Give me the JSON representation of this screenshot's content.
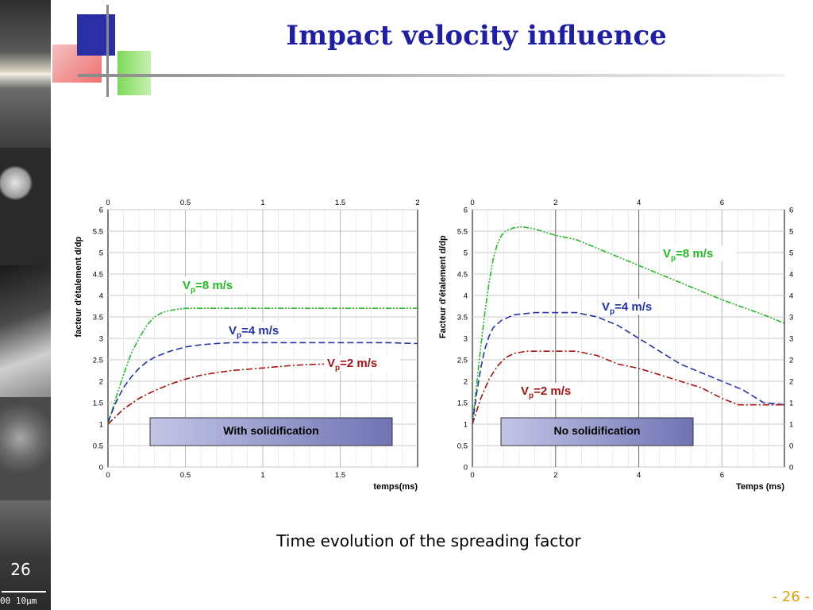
{
  "slide": {
    "title": "Impact velocity influence",
    "caption": "Time evolution of the spreading factor",
    "page_number": "- 26 -",
    "badge": "26",
    "scale_label": "00  10µm"
  },
  "chart_data": [
    {
      "type": "line",
      "ylabel": "facteur d'étalement d/dp",
      "xlabel": "temps(ms)",
      "xlim": [
        0,
        2
      ],
      "ylim": [
        0,
        6
      ],
      "x_ticks": [
        "0",
        "0.5",
        "1",
        "1.5"
      ],
      "x_ticks_top": [
        "0",
        "0.5",
        "1",
        "1.5",
        "2"
      ],
      "y_ticks": [
        "0",
        "0.5",
        "1",
        "1.5",
        "2",
        "2.5",
        "3",
        "3.5",
        "4",
        "4.5",
        "5",
        "5.5",
        "6"
      ],
      "grid": true,
      "box_label": "With solidification",
      "series": [
        {
          "name": "V_p=8 m/s",
          "label_main": "V",
          "label_sub": "p",
          "label_rest": "=8 m/s",
          "color": "#22bb22",
          "style": "dash-dot-dot",
          "x": [
            0,
            0.05,
            0.1,
            0.15,
            0.2,
            0.25,
            0.3,
            0.35,
            0.4,
            0.45,
            0.5,
            0.6,
            0.8,
            1.0,
            1.2,
            1.4,
            1.6,
            1.8,
            2.0
          ],
          "y": [
            1.0,
            1.6,
            2.15,
            2.65,
            3.0,
            3.3,
            3.5,
            3.6,
            3.65,
            3.68,
            3.7,
            3.7,
            3.7,
            3.7,
            3.7,
            3.7,
            3.7,
            3.7,
            3.7
          ]
        },
        {
          "name": "V_p=4 m/s",
          "label_main": "V",
          "label_sub": "p",
          "label_rest": "=4 m/s",
          "color": "#2233aa",
          "style": "dash",
          "x": [
            0,
            0.05,
            0.1,
            0.15,
            0.2,
            0.25,
            0.3,
            0.4,
            0.5,
            0.6,
            0.7,
            0.8,
            1.0,
            1.2,
            1.4,
            1.6,
            1.8,
            2.0
          ],
          "y": [
            1.05,
            1.5,
            1.85,
            2.1,
            2.3,
            2.45,
            2.56,
            2.7,
            2.8,
            2.85,
            2.88,
            2.9,
            2.9,
            2.9,
            2.9,
            2.9,
            2.9,
            2.88
          ]
        },
        {
          "name": "V_p=2 m/s",
          "label_main": "V",
          "label_sub": "p",
          "label_rest": "=2 m/s",
          "color": "#aa1111",
          "style": "dash-dot",
          "x": [
            0,
            0.1,
            0.2,
            0.3,
            0.4,
            0.5,
            0.6,
            0.7,
            0.8,
            0.9,
            1.0,
            1.1,
            1.2,
            1.3,
            1.4,
            1.5
          ],
          "y": [
            1.0,
            1.35,
            1.6,
            1.78,
            1.93,
            2.05,
            2.14,
            2.2,
            2.25,
            2.28,
            2.31,
            2.34,
            2.37,
            2.39,
            2.4,
            2.4
          ]
        }
      ]
    },
    {
      "type": "line",
      "ylabel": "Facteur d'étalement d/dp",
      "xlabel": "Temps (ms)",
      "xlim": [
        0,
        7.5
      ],
      "ylim": [
        0,
        6
      ],
      "x_ticks": [
        "0",
        "2",
        "4",
        "6"
      ],
      "x_ticks_top": [
        "0",
        "2",
        "4",
        "6"
      ],
      "y_ticks": [
        "0",
        "0.5",
        "1",
        "1.5",
        "2",
        "2.5",
        "3",
        "3.5",
        "4",
        "4.5",
        "5",
        "5.5",
        "6"
      ],
      "grid": true,
      "box_label": "No solidification",
      "series": [
        {
          "name": "V_p=8 m/s",
          "label_main": "V",
          "label_sub": "p",
          "label_rest": "=8 m/s",
          "color": "#22bb22",
          "style": "dash-dot-dot",
          "x": [
            0,
            0.1,
            0.2,
            0.3,
            0.4,
            0.5,
            0.6,
            0.7,
            0.8,
            1.0,
            1.2,
            1.5,
            2.0,
            2.5,
            3.0,
            4.0,
            5.0,
            6.0,
            7.0,
            7.5
          ],
          "y": [
            1.0,
            1.9,
            2.8,
            3.6,
            4.3,
            4.85,
            5.2,
            5.4,
            5.5,
            5.58,
            5.6,
            5.55,
            5.4,
            5.3,
            5.1,
            4.7,
            4.3,
            3.9,
            3.55,
            3.35
          ]
        },
        {
          "name": "V_p=4 m/s",
          "label_main": "V",
          "label_sub": "p",
          "label_rest": "=4 m/s",
          "color": "#2233aa",
          "style": "dash",
          "x": [
            0,
            0.1,
            0.2,
            0.3,
            0.4,
            0.5,
            0.7,
            1.0,
            1.5,
            2.0,
            2.5,
            3.0,
            3.5,
            4.0,
            4.5,
            5.0,
            6.0,
            6.5,
            7.0,
            7.5
          ],
          "y": [
            1.0,
            1.7,
            2.3,
            2.75,
            3.05,
            3.25,
            3.42,
            3.55,
            3.6,
            3.6,
            3.6,
            3.5,
            3.3,
            3.0,
            2.7,
            2.4,
            2.0,
            1.8,
            1.5,
            1.45
          ]
        },
        {
          "name": "V_p=2 m/s",
          "label_main": "V",
          "label_sub": "p",
          "label_rest": "=2 m/s",
          "color": "#aa1111",
          "style": "dash-dot",
          "x": [
            0,
            0.2,
            0.4,
            0.6,
            0.8,
            1.0,
            1.3,
            1.6,
            2.0,
            2.5,
            3.0,
            3.5,
            4.0,
            4.5,
            5.0,
            5.5,
            6.0,
            6.4,
            7.0,
            7.5
          ],
          "y": [
            1.0,
            1.6,
            2.05,
            2.35,
            2.55,
            2.65,
            2.7,
            2.7,
            2.7,
            2.7,
            2.6,
            2.4,
            2.3,
            2.15,
            2.0,
            1.85,
            1.6,
            1.45,
            1.45,
            1.45
          ]
        }
      ]
    }
  ]
}
